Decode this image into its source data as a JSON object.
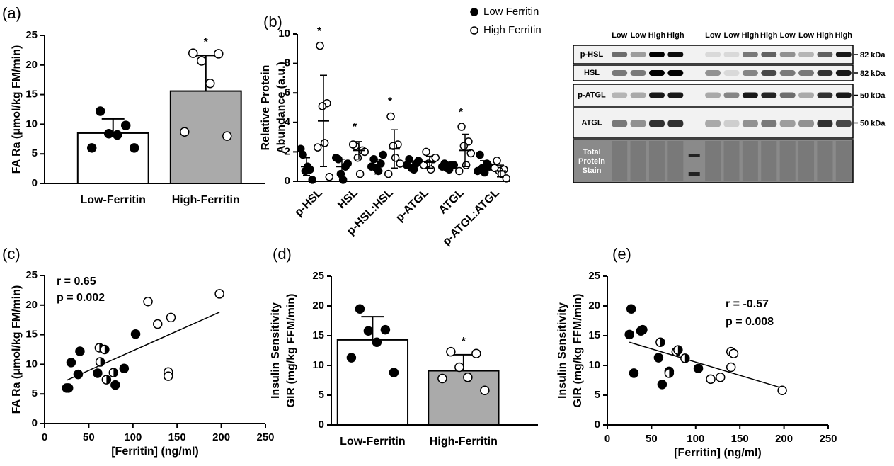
{
  "chart_data": [
    {
      "type": "bar",
      "label": "(a)",
      "ylabel": "FA Ra (μmol/kg FM/min)",
      "categories": [
        "Low-Ferritin",
        "High-Ferritin"
      ],
      "values": [
        8.5,
        15.6
      ],
      "errors": [
        2.4,
        6.0
      ],
      "colors": [
        "#ffffff",
        "#aaaaaa"
      ],
      "points": [
        [
          12.2,
          9.8,
          8.4,
          8.2,
          6.0,
          6.0
        ],
        [
          22.0,
          21.9,
          20.7,
          16.9,
          8.7,
          8.0
        ]
      ],
      "point_colors": [
        "#000000",
        "#ffffff"
      ],
      "significance": [
        null,
        "*"
      ],
      "ylim": [
        0,
        25
      ],
      "yticks": [
        0,
        5,
        10,
        15,
        20,
        25
      ]
    },
    {
      "type": "dot",
      "label": "(b)",
      "ylabel": [
        "Relative Protein",
        "Abundance (a.u.)"
      ],
      "categories": [
        "p-HSL",
        "HSL",
        "p-HSL:HSL",
        "p-ATGL",
        "ATGL",
        "p-ATGL:ATGL"
      ],
      "significance": [
        "*",
        "*",
        "*",
        null,
        "*",
        null
      ],
      "series": [
        {
          "name": "Low Ferritin",
          "color": "#000000",
          "values": [
            1.0,
            1.0,
            1.0,
            1.0,
            1.0,
            1.0
          ],
          "errors": [
            0.6,
            0.5,
            0.5,
            0.3,
            0.3,
            0.4
          ],
          "points": [
            [
              1.8,
              0.8,
              0.7,
              1.0,
              2.2,
              0.1
            ],
            [
              1.5,
              1.0,
              0.5,
              0.1,
              1.6,
              1.2
            ],
            [
              1.5,
              1.2,
              0.9,
              0.7,
              1.0,
              1.8
            ],
            [
              1.5,
              1.2,
              0.9,
              0.8,
              1.1,
              1.4
            ],
            [
              1.2,
              1.1,
              0.9,
              0.8,
              1.0,
              1.1
            ],
            [
              1.8,
              1.2,
              0.9,
              0.6,
              0.7,
              1.0
            ]
          ]
        },
        {
          "name": "High Ferritin",
          "color": "#ffffff",
          "values": [
            4.1,
            2.1,
            2.2,
            1.3,
            2.1,
            0.7
          ],
          "errors": [
            3.1,
            0.6,
            1.3,
            0.4,
            1.1,
            0.4
          ],
          "points": [
            [
              9.2,
              5.3,
              5.1,
              2.6,
              2.3,
              0.3
            ],
            [
              2.4,
              2.1,
              1.6,
              0.5,
              2.5,
              2.0
            ],
            [
              4.4,
              2.5,
              2.4,
              1.6,
              0.5,
              1.2
            ],
            [
              2.0,
              1.5,
              1.2,
              0.8,
              1.1,
              1.6
            ],
            [
              3.7,
              2.7,
              2.4,
              1.1,
              0.7,
              1.9
            ],
            [
              1.4,
              0.8,
              0.7,
              0.5,
              0.9,
              0.2
            ]
          ]
        }
      ],
      "ylim": [
        0,
        10
      ],
      "yticks": [
        0,
        2,
        4,
        6,
        8,
        10
      ]
    },
    {
      "type": "scatter",
      "label": "(c)",
      "ylabel": "FA Ra (μmol/kg FM/min)",
      "xlabel": "[Ferritin] (ng/ml)",
      "stats": [
        "r = 0.65",
        "p = 0.002"
      ],
      "series": [
        {
          "marker": "filled",
          "x": [
            25,
            27,
            30,
            38,
            40,
            60,
            80,
            90,
            103
          ],
          "y": [
            6.0,
            6.0,
            10.3,
            8.3,
            12.2,
            8.5,
            6.5,
            9.3,
            15.1
          ]
        },
        {
          "marker": "half",
          "x": [
            62,
            63,
            68,
            70,
            78
          ],
          "y": [
            12.8,
            10.4,
            12.5,
            7.4,
            8.6
          ]
        },
        {
          "marker": "open",
          "x": [
            117,
            128,
            140,
            140,
            143,
            198
          ],
          "y": [
            20.6,
            16.8,
            8.7,
            8.0,
            17.9,
            21.9
          ]
        }
      ],
      "fit": {
        "x": [
          25,
          198
        ],
        "y": [
          7.3,
          18.8
        ]
      },
      "xlim": [
        0,
        250
      ],
      "xticks": [
        0,
        50,
        100,
        150,
        200,
        250
      ],
      "ylim": [
        0,
        25
      ],
      "yticks": [
        0,
        5,
        10,
        15,
        20,
        25
      ]
    },
    {
      "type": "bar",
      "label": "(d)",
      "ylabel": [
        "Insulin Sensitivity",
        "GIR (mg/kg FFM/min)"
      ],
      "categories": [
        "Low-Ferritin",
        "High-Ferritin"
      ],
      "values": [
        14.3,
        9.1
      ],
      "errors": [
        3.9,
        2.7
      ],
      "colors": [
        "#ffffff",
        "#aaaaaa"
      ],
      "points": [
        [
          19.5,
          16.0,
          15.8,
          13.9,
          11.3,
          8.8
        ],
        [
          12.3,
          12.0,
          9.7,
          8.0,
          7.8,
          5.8
        ]
      ],
      "point_colors": [
        "#000000",
        "#ffffff"
      ],
      "significance": [
        null,
        "*"
      ],
      "ylim": [
        0,
        25
      ],
      "yticks": [
        0,
        5,
        10,
        15,
        20,
        25
      ]
    },
    {
      "type": "scatter",
      "label": "(e)",
      "ylabel": [
        "Insulin Sensitivity",
        "GIR (mg/kg FFM/min)"
      ],
      "xlabel": "[Ferritin] (ng/ml)",
      "stats": [
        "r = -0.57",
        "p = 0.008"
      ],
      "series": [
        {
          "marker": "filled",
          "x": [
            25,
            27,
            30,
            38,
            40,
            58,
            62,
            70,
            103
          ],
          "y": [
            15.2,
            19.5,
            8.7,
            15.8,
            16.0,
            11.3,
            6.8,
            9.0,
            9.5
          ]
        },
        {
          "marker": "half",
          "x": [
            60,
            70,
            78,
            80,
            88
          ],
          "y": [
            13.9,
            8.7,
            12.3,
            12.6,
            11.2
          ]
        },
        {
          "marker": "open",
          "x": [
            117,
            128,
            140,
            143,
            140,
            198
          ],
          "y": [
            7.7,
            8.0,
            12.3,
            12.0,
            9.7,
            5.8
          ]
        }
      ],
      "fit": {
        "x": [
          25,
          198
        ],
        "y": [
          13.9,
          6.2
        ]
      },
      "xlim": [
        0,
        250
      ],
      "xticks": [
        0,
        50,
        100,
        150,
        200,
        250
      ],
      "ylim": [
        0,
        25
      ],
      "yticks": [
        0,
        5,
        10,
        15,
        20,
        25
      ]
    }
  ],
  "blot": {
    "lanes": [
      "Low",
      "Low",
      "High",
      "High",
      "Low",
      "Low",
      "High",
      "High",
      "Low",
      "Low",
      "High",
      "High"
    ],
    "rows": [
      {
        "label": "p-HSL",
        "size": "82 kDa"
      },
      {
        "label": "HSL",
        "size": "82 kDa"
      },
      {
        "label": "p-ATGL",
        "size": "50 kDa"
      },
      {
        "label": "ATGL",
        "size": "50 kDa"
      },
      {
        "label": [
          "Total",
          "Protein",
          "Stain"
        ]
      }
    ]
  }
}
